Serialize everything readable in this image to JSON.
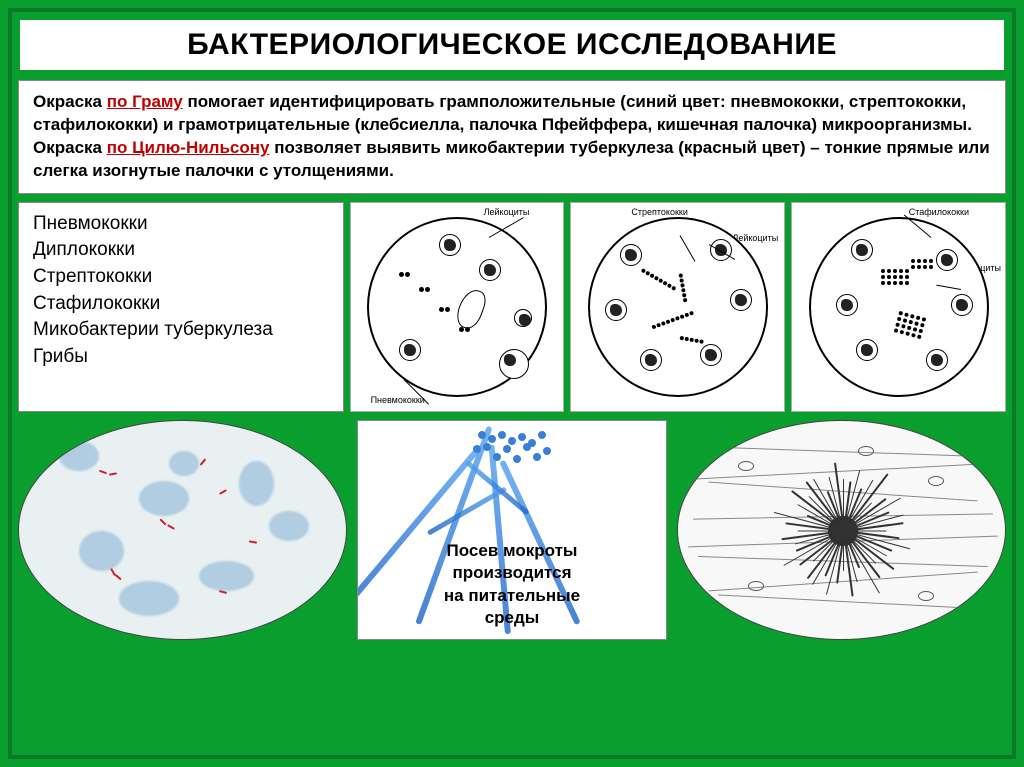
{
  "title": "БАКТЕРИОЛОГИЧЕСКОЕ ИССЛЕДОВАНИЕ",
  "desc": {
    "p1_lead": "Окраска ",
    "p1_key": "по Граму",
    "p1_rest": " помогает идентифицировать грамположительные (синий цвет: пневмококки, стрептококки, стафилококки) и грамотрицательные (клебсиелла, палочка Пфейффера, кишечная палочка) микроорганизмы.",
    "p2_lead": "Окраска ",
    "p2_key": "по Цилю-Нильсону",
    "p2_rest": " позволяет выявить микобактерии туберкулеза (красный цвет) – тонкие прямые или слегка изогнутые палочки с утолщениями."
  },
  "list": [
    "Пневмококки",
    "Диплококки",
    "Стрептококки",
    "Стафилококки",
    "Микобактерии туберкулеза",
    "Грибы"
  ],
  "micro_labels": {
    "panel1": {
      "top": "Лейкоциты",
      "bottom": "Пневмококки"
    },
    "panel2": {
      "top": "Стрептококки",
      "right": "Лейкоциты"
    },
    "panel3": {
      "top": "Стафилококки",
      "right": "Лейкоциты"
    }
  },
  "caption": {
    "l1": "Посев мокроты",
    "l2": "производится",
    "l3": "на питательные",
    "l4": "среды"
  },
  "colors": {
    "bg": "#0a9e2f",
    "border": "#0a7a24",
    "link_red": "#c00000",
    "panel_bg": "#ffffff",
    "hypha_blue": "#3a7fd6",
    "bacillus_red": "#d02030"
  },
  "fonts": {
    "title_pt": 30,
    "body_pt": 17,
    "list_pt": 19,
    "caption_pt": 17,
    "micro_label_pt": 9
  }
}
